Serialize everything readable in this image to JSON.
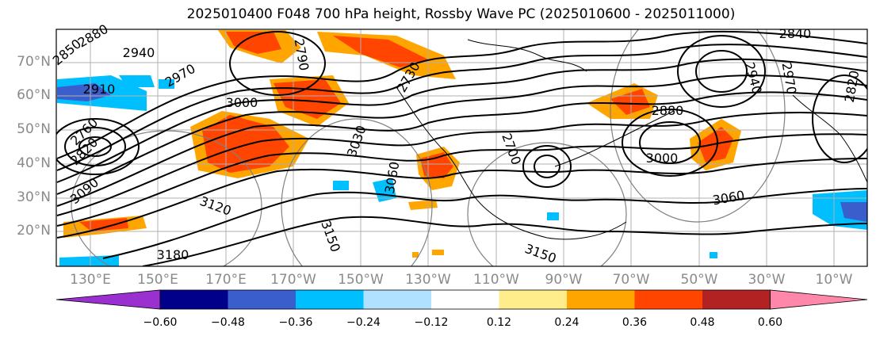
{
  "title": "2025010400 F048 700 hPa height, Rossby Wave PC (2025010600 - 2025011000)",
  "lat_labels": [
    "70°N",
    "60°N",
    "50°N",
    "40°N",
    "30°N",
    "20°N"
  ],
  "lon_labels": [
    "130°E",
    "150°E",
    "170°E",
    "170°W",
    "150°W",
    "130°W",
    "110°W",
    "90°W",
    "70°W",
    "50°W",
    "30°W",
    "10°W"
  ],
  "colorbar": {
    "colors": [
      "#9b30d0",
      "#00008b",
      "#3a5fcd",
      "#00bfff",
      "#b0e2ff",
      "#ffffff",
      "#ffec8b",
      "#ffa500",
      "#ff4500",
      "#b22222",
      "#ff88aa"
    ],
    "tick_labels": [
      "−0.60",
      "−0.48",
      "−0.36",
      "−0.24",
      "−0.12",
      "0.12",
      "0.24",
      "0.36",
      "0.48",
      "0.60"
    ]
  },
  "contour_labels": [
    "2850",
    "2880",
    "2940",
    "2910",
    "2970",
    "3000",
    "2760",
    "2820",
    "3030",
    "3060",
    "3090",
    "3120",
    "3150",
    "3180",
    "2790",
    "2730",
    "2700",
    "2940",
    "2970",
    "2880",
    "2820",
    "2840",
    "3000",
    "3150",
    "3060"
  ]
}
